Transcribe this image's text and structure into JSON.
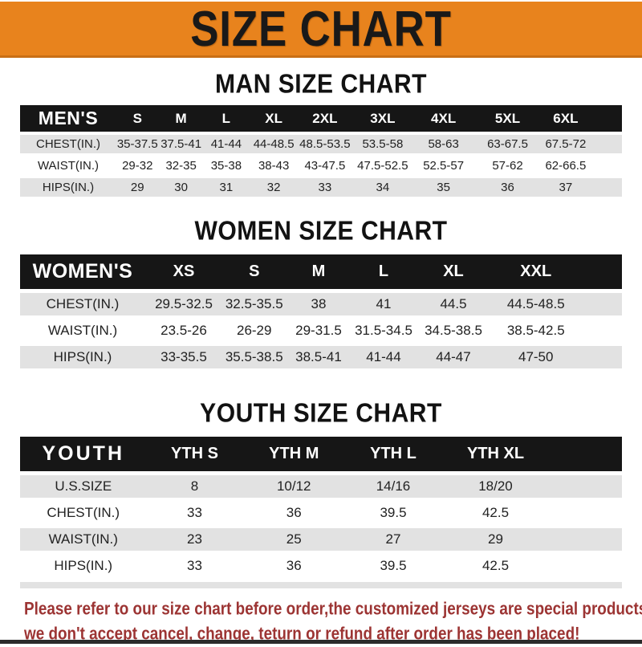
{
  "banner": {
    "title": "SIZE CHART"
  },
  "sections": [
    {
      "title": "MAN SIZE CHART",
      "header_label": "MEN'S",
      "columns": [
        "S",
        "M",
        "L",
        "XL",
        "2XL",
        "3XL",
        "4XL",
        "5XL",
        "6XL"
      ],
      "rows": [
        {
          "label": "CHEST(IN.)",
          "values": [
            "35-37.5",
            "37.5-41",
            "41-44",
            "44-48.5",
            "48.5-53.5",
            "53.5-58",
            "58-63",
            "63-67.5",
            "67.5-72"
          ]
        },
        {
          "label": "WAIST(IN.)",
          "values": [
            "29-32",
            "32-35",
            "35-38",
            "38-43",
            "43-47.5",
            "47.5-52.5",
            "52.5-57",
            "57-62",
            "62-66.5"
          ]
        },
        {
          "label": "HIPS(IN.)",
          "values": [
            "29",
            "30",
            "31",
            "32",
            "33",
            "34",
            "35",
            "36",
            "37"
          ]
        }
      ]
    },
    {
      "title": "WOMEN SIZE CHART",
      "header_label": "WOMEN'S",
      "columns": [
        "XS",
        "S",
        "M",
        "L",
        "XL",
        "XXL"
      ],
      "rows": [
        {
          "label": "CHEST(IN.)",
          "values": [
            "29.5-32.5",
            "32.5-35.5",
            "38",
            "41",
            "44.5",
            "44.5-48.5"
          ]
        },
        {
          "label": "WAIST(IN.)",
          "values": [
            "23.5-26",
            "26-29",
            "29-31.5",
            "31.5-34.5",
            "34.5-38.5",
            "38.5-42.5"
          ]
        },
        {
          "label": "HIPS(IN.)",
          "values": [
            "33-35.5",
            "35.5-38.5",
            "38.5-41",
            "41-44",
            "44-47",
            "47-50"
          ]
        }
      ]
    },
    {
      "title": "YOUTH SIZE CHART",
      "header_label": "YOUTH",
      "columns": [
        "YTH S",
        "YTH M",
        "YTH L",
        "YTH XL"
      ],
      "rows": [
        {
          "label": "U.S.SIZE",
          "values": [
            "8",
            "10/12",
            "14/16",
            "18/20"
          ]
        },
        {
          "label": "CHEST(IN.)",
          "values": [
            "33",
            "36",
            "39.5",
            "42.5"
          ]
        },
        {
          "label": "WAIST(IN.)",
          "values": [
            "23",
            "25",
            "27",
            "29"
          ]
        },
        {
          "label": "HIPS(IN.)",
          "values": [
            "33",
            "36",
            "39.5",
            "42.5"
          ]
        }
      ]
    }
  ],
  "footer": {
    "line1": "Please refer to our size chart before order,the customized jerseys are special products,",
    "line2": "we don't accept cancel, change, teturn or refund after order has been placed!"
  },
  "colors": {
    "banner_bg": "#E8831D",
    "banner_border": "#C96F15",
    "banner_text": "#191919",
    "table_bar_bg": "#161616",
    "table_bar_text": "#ffffff",
    "row_shade": "#e2e2e2",
    "notice_text": "#9c3433",
    "bottom_strip": "#2b2b2b"
  }
}
